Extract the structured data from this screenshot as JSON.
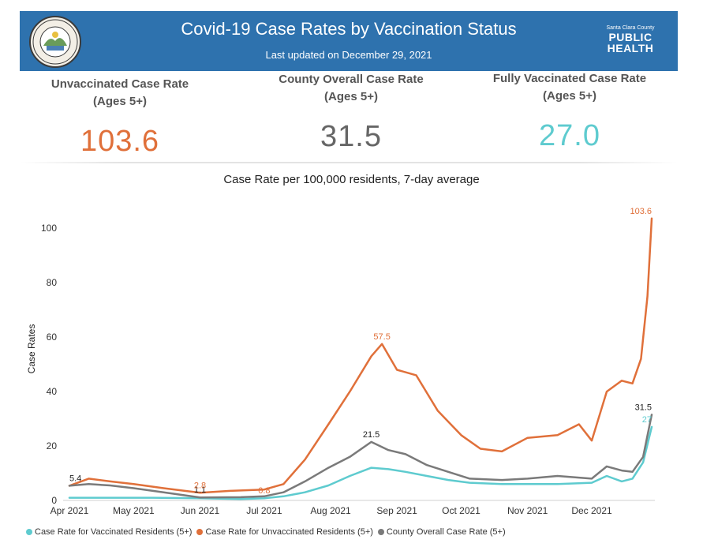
{
  "header": {
    "title": "Covid-19 Case Rates by Vaccination Status",
    "subtitle": "Last updated on December 29, 2021",
    "logo_text": "THE COUNTY OF SANTA CLARA",
    "brand_line1": "Santa Clara County",
    "brand_public": "PUBLIC",
    "brand_health": "HEALTH"
  },
  "kpis": [
    {
      "label_line1": "Unvaccinated Case Rate",
      "label_line2": "(Ages 5+)",
      "value": "103.6",
      "color": "#e0703a"
    },
    {
      "label_line1": "County Overall Case Rate",
      "label_line2": "(Ages 5+)",
      "value": "31.5",
      "color": "#666666"
    },
    {
      "label_line1": "Fully Vaccinated Case Rate",
      "label_line2": "(Ages 5+)",
      "value": "27.0",
      "color": "#5ecbcf"
    }
  ],
  "chart_data": {
    "type": "line",
    "title": "Case Rate per 100,000 residents, 7-day average",
    "ylabel": "Case Rates",
    "xlabel": "",
    "ylim": [
      0,
      105
    ],
    "yticks": [
      0,
      20,
      40,
      60,
      80,
      100
    ],
    "xrange": [
      "2021-04-01",
      "2021-12-29"
    ],
    "xticks": [
      {
        "date": "2021-04-01",
        "label": "Apr 2021"
      },
      {
        "date": "2021-05-01",
        "label": "May 2021"
      },
      {
        "date": "2021-06-01",
        "label": "Jun 2021"
      },
      {
        "date": "2021-07-01",
        "label": "Jul 2021"
      },
      {
        "date": "2021-08-01",
        "label": "Aug 2021"
      },
      {
        "date": "2021-09-01",
        "label": "Sep 2021"
      },
      {
        "date": "2021-10-01",
        "label": "Oct 2021"
      },
      {
        "date": "2021-11-01",
        "label": "Nov 2021"
      },
      {
        "date": "2021-12-01",
        "label": "Dec 2021"
      }
    ],
    "grid": false,
    "legend_position": "bottom",
    "series": [
      {
        "name": "Case Rate for Vaccinated Residents (5+)",
        "color": "#5ecbcf",
        "points": [
          [
            "2021-04-01",
            1
          ],
          [
            "2021-04-20",
            1
          ],
          [
            "2021-05-10",
            1
          ],
          [
            "2021-06-01",
            0.8
          ],
          [
            "2021-06-20",
            0.5
          ],
          [
            "2021-07-01",
            0.8
          ],
          [
            "2021-07-10",
            1.5
          ],
          [
            "2021-07-20",
            3
          ],
          [
            "2021-07-31",
            5.5
          ],
          [
            "2021-08-10",
            9
          ],
          [
            "2021-08-20",
            12
          ],
          [
            "2021-08-28",
            11.5
          ],
          [
            "2021-09-05",
            10.5
          ],
          [
            "2021-09-15",
            9
          ],
          [
            "2021-09-25",
            7.5
          ],
          [
            "2021-10-05",
            6.5
          ],
          [
            "2021-10-20",
            6
          ],
          [
            "2021-11-01",
            6
          ],
          [
            "2021-11-15",
            6
          ],
          [
            "2021-12-01",
            6.5
          ],
          [
            "2021-12-08",
            9
          ],
          [
            "2021-12-15",
            7
          ],
          [
            "2021-12-20",
            8
          ],
          [
            "2021-12-25",
            14
          ],
          [
            "2021-12-29",
            27
          ]
        ]
      },
      {
        "name": "Case Rate for Unvaccinated Residents (5+)",
        "color": "#e0703a",
        "points": [
          [
            "2021-04-01",
            5.4
          ],
          [
            "2021-04-10",
            8
          ],
          [
            "2021-04-20",
            7
          ],
          [
            "2021-05-01",
            6
          ],
          [
            "2021-05-15",
            4.5
          ],
          [
            "2021-06-01",
            2.8
          ],
          [
            "2021-06-15",
            3.5
          ],
          [
            "2021-07-01",
            4
          ],
          [
            "2021-07-10",
            6
          ],
          [
            "2021-07-20",
            15
          ],
          [
            "2021-07-31",
            28
          ],
          [
            "2021-08-10",
            40
          ],
          [
            "2021-08-20",
            53
          ],
          [
            "2021-08-25",
            57.5
          ],
          [
            "2021-09-01",
            48
          ],
          [
            "2021-09-10",
            46
          ],
          [
            "2021-09-20",
            33
          ],
          [
            "2021-10-01",
            24
          ],
          [
            "2021-10-10",
            19
          ],
          [
            "2021-10-20",
            18
          ],
          [
            "2021-11-01",
            23
          ],
          [
            "2021-11-15",
            24
          ],
          [
            "2021-11-25",
            28
          ],
          [
            "2021-12-01",
            22
          ],
          [
            "2021-12-08",
            40
          ],
          [
            "2021-12-15",
            44
          ],
          [
            "2021-12-20",
            43
          ],
          [
            "2021-12-24",
            52
          ],
          [
            "2021-12-27",
            75
          ],
          [
            "2021-12-29",
            103.6
          ]
        ]
      },
      {
        "name": "County Overall Case Rate (5+)",
        "color": "#7a7a7a",
        "points": [
          [
            "2021-04-01",
            5.4
          ],
          [
            "2021-04-10",
            6
          ],
          [
            "2021-04-20",
            5.5
          ],
          [
            "2021-05-01",
            4.5
          ],
          [
            "2021-05-15",
            3
          ],
          [
            "2021-06-01",
            1.1
          ],
          [
            "2021-06-20",
            1.2
          ],
          [
            "2021-07-01",
            1.5
          ],
          [
            "2021-07-10",
            3
          ],
          [
            "2021-07-20",
            7
          ],
          [
            "2021-07-31",
            12
          ],
          [
            "2021-08-10",
            16
          ],
          [
            "2021-08-20",
            21.5
          ],
          [
            "2021-08-28",
            18.5
          ],
          [
            "2021-09-05",
            17
          ],
          [
            "2021-09-15",
            13
          ],
          [
            "2021-09-25",
            10.5
          ],
          [
            "2021-10-05",
            8
          ],
          [
            "2021-10-20",
            7.5
          ],
          [
            "2021-11-01",
            8
          ],
          [
            "2021-11-15",
            9
          ],
          [
            "2021-12-01",
            8
          ],
          [
            "2021-12-08",
            12.5
          ],
          [
            "2021-12-15",
            11
          ],
          [
            "2021-12-20",
            10.5
          ],
          [
            "2021-12-25",
            16
          ],
          [
            "2021-12-29",
            31.5
          ]
        ]
      }
    ],
    "annotations": [
      {
        "series": 2,
        "date": "2021-04-01",
        "value": 5.4,
        "text": "5.4",
        "color": "#222222",
        "anchor": "start"
      },
      {
        "series": 2,
        "date": "2021-06-01",
        "value": 1.1,
        "text": "1.1",
        "color": "#222222",
        "anchor": "middle"
      },
      {
        "series": 1,
        "date": "2021-06-01",
        "value": 2.8,
        "text": "2.8",
        "color": "#e0703a",
        "anchor": "middle"
      },
      {
        "series": 0,
        "date": "2021-07-01",
        "value": 0.8,
        "text": "0.8",
        "color": "#e0703a",
        "anchor": "middle"
      },
      {
        "series": 1,
        "date": "2021-08-25",
        "value": 57.5,
        "text": "57.5",
        "color": "#e0703a",
        "anchor": "middle"
      },
      {
        "series": 2,
        "date": "2021-08-20",
        "value": 21.5,
        "text": "21.5",
        "color": "#222222",
        "anchor": "middle"
      },
      {
        "series": 1,
        "date": "2021-12-29",
        "value": 103.6,
        "text": "103.6",
        "color": "#e0703a",
        "anchor": "end"
      },
      {
        "series": 2,
        "date": "2021-12-29",
        "value": 31.5,
        "text": "31.5",
        "color": "#222222",
        "anchor": "end"
      },
      {
        "series": 0,
        "date": "2021-12-29",
        "value": 27,
        "text": "27",
        "color": "#5ecbcf",
        "anchor": "end"
      }
    ]
  }
}
